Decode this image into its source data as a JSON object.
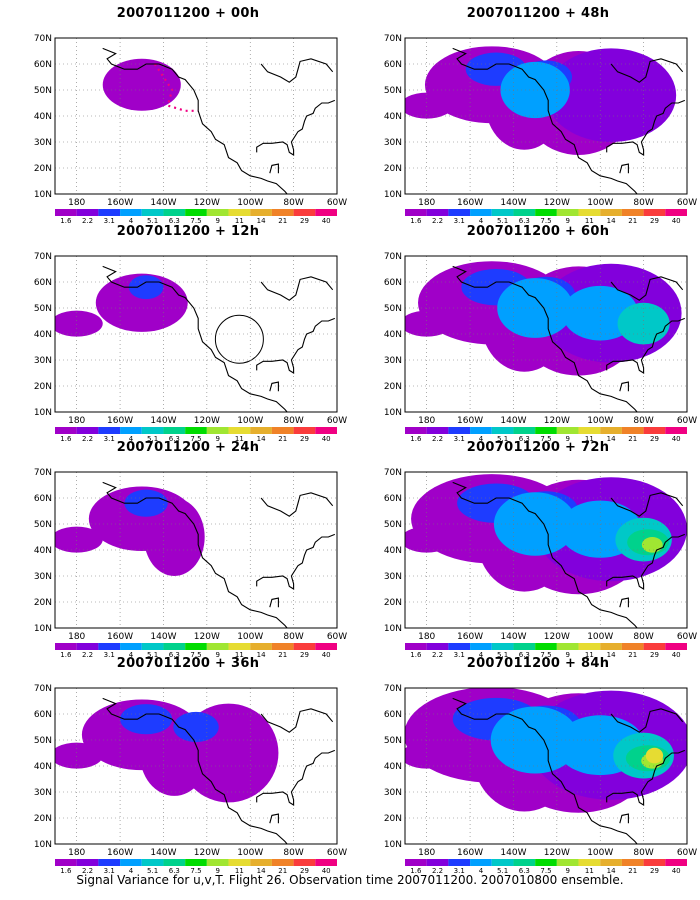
{
  "caption": "Signal Variance for u,v,T. Flight 26. Observation time 2007011200. 2007010800 ensemble.",
  "lat_labels": [
    "70N",
    "60N",
    "50N",
    "40N",
    "30N",
    "20N",
    "10N"
  ],
  "lon_labels": [
    "180",
    "160W",
    "140W",
    "120W",
    "100W",
    "80W",
    "60W"
  ],
  "colorbar": {
    "levels": [
      "1.6",
      "2.2",
      "3.1",
      "4",
      "5.1",
      "6.3",
      "7.5",
      "9",
      "11",
      "14",
      "21",
      "29",
      "40"
    ],
    "colors": [
      "#a000c8",
      "#8200dc",
      "#1e3cff",
      "#00a0ff",
      "#00c8c8",
      "#00d28c",
      "#00dc00",
      "#a0e632",
      "#e6dc32",
      "#e6af2d",
      "#f08228",
      "#fa3c3c",
      "#f00082"
    ]
  },
  "panels": [
    {
      "title": "2007011200 + 00h",
      "column": 0,
      "row": 0,
      "intensity": 0,
      "colorbar_ticks": true
    },
    {
      "title": "2007011200 + 12h",
      "column": 0,
      "row": 1,
      "intensity": 1,
      "colorbar_ticks": true
    },
    {
      "title": "2007011200 + 24h",
      "column": 0,
      "row": 2,
      "intensity": 2,
      "colorbar_ticks": true
    },
    {
      "title": "2007011200 + 36h",
      "column": 0,
      "row": 3,
      "intensity": 3,
      "colorbar_ticks": true
    },
    {
      "title": "2007011200 + 48h",
      "column": 1,
      "row": 0,
      "intensity": 4,
      "colorbar_ticks": true
    },
    {
      "title": "2007011200 + 60h",
      "column": 1,
      "row": 1,
      "intensity": 5,
      "colorbar_ticks": true
    },
    {
      "title": "2007011200 + 72h",
      "column": 1,
      "row": 2,
      "intensity": 6,
      "colorbar_ticks": true
    },
    {
      "title": "2007011200 + 84h",
      "column": 1,
      "row": 3,
      "intensity": 7,
      "colorbar_ticks": true
    }
  ]
}
